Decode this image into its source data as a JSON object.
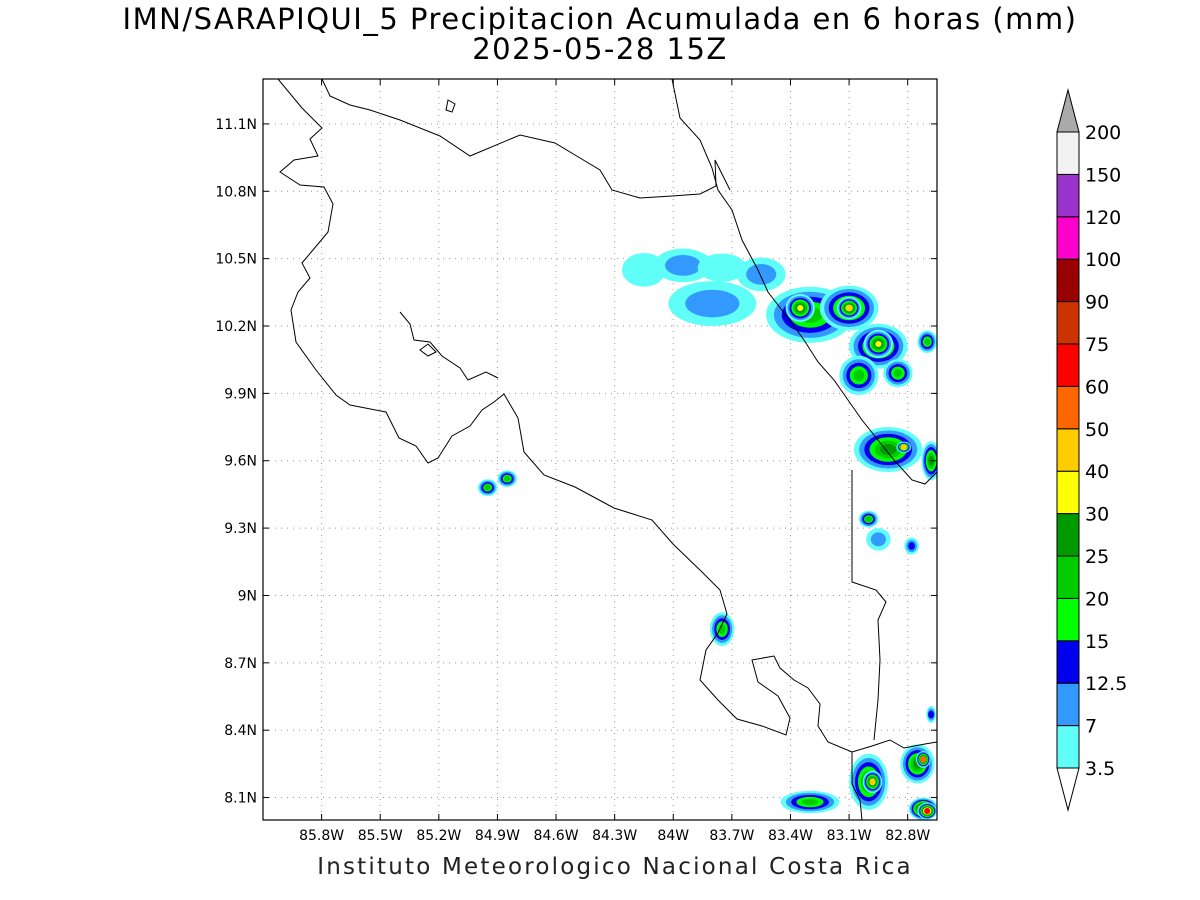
{
  "title": {
    "line1": "IMN/SARAPIQUI_5 Precipitacion Acumulada en 6 horas (mm)",
    "line2": "2025-05-28 15Z"
  },
  "footer": "Instituto Meteorologico Nacional Costa Rica",
  "map": {
    "lon_range": [
      -86.1,
      -82.65
    ],
    "lat_range": [
      8.0,
      11.3
    ],
    "lon_ticks": [
      {
        "value": -85.8,
        "label": "85.8W"
      },
      {
        "value": -85.5,
        "label": "85.5W"
      },
      {
        "value": -85.2,
        "label": "85.2W"
      },
      {
        "value": -84.9,
        "label": "84.9W"
      },
      {
        "value": -84.6,
        "label": "84.6W"
      },
      {
        "value": -84.3,
        "label": "84.3W"
      },
      {
        "value": -84.0,
        "label": "84W"
      },
      {
        "value": -83.7,
        "label": "83.7W"
      },
      {
        "value": -83.4,
        "label": "83.4W"
      },
      {
        "value": -83.1,
        "label": "83.1W"
      },
      {
        "value": -82.8,
        "label": "82.8W"
      }
    ],
    "lat_ticks": [
      {
        "value": 8.1,
        "label": "8.1N"
      },
      {
        "value": 8.4,
        "label": "8.4N"
      },
      {
        "value": 8.7,
        "label": "8.7N"
      },
      {
        "value": 9.0,
        "label": "9N"
      },
      {
        "value": 9.3,
        "label": "9.3N"
      },
      {
        "value": 9.6,
        "label": "9.6N"
      },
      {
        "value": 9.9,
        "label": "9.9N"
      },
      {
        "value": 10.2,
        "label": "10.2N"
      },
      {
        "value": 10.5,
        "label": "10.5N"
      },
      {
        "value": 10.8,
        "label": "10.8N"
      },
      {
        "value": 11.1,
        "label": "11.1N"
      }
    ],
    "grid": true,
    "precip_cells": [
      {
        "lon": -84.15,
        "lat": 10.45,
        "mm": 3.5,
        "rx": 0.09,
        "ry": 0.06
      },
      {
        "lon": -83.95,
        "lat": 10.47,
        "mm": 7,
        "rx": 0.12,
        "ry": 0.06
      },
      {
        "lon": -83.75,
        "lat": 10.46,
        "mm": 3.5,
        "rx": 0.1,
        "ry": 0.05
      },
      {
        "lon": -83.55,
        "lat": 10.43,
        "mm": 7,
        "rx": 0.1,
        "ry": 0.06
      },
      {
        "lon": -83.8,
        "lat": 10.3,
        "mm": 7,
        "rx": 0.18,
        "ry": 0.08
      },
      {
        "lon": -83.3,
        "lat": 10.25,
        "mm": 20,
        "rx": 0.18,
        "ry": 0.1
      },
      {
        "lon": -83.35,
        "lat": 10.28,
        "mm": 30,
        "rx": 0.06,
        "ry": 0.05
      },
      {
        "lon": -83.1,
        "lat": 10.28,
        "mm": 25,
        "rx": 0.12,
        "ry": 0.08
      },
      {
        "lon": -83.1,
        "lat": 10.28,
        "mm": 40,
        "rx": 0.05,
        "ry": 0.04
      },
      {
        "lon": -82.95,
        "lat": 10.11,
        "mm": 25,
        "rx": 0.12,
        "ry": 0.08
      },
      {
        "lon": -82.95,
        "lat": 10.12,
        "mm": 30,
        "rx": 0.06,
        "ry": 0.05
      },
      {
        "lon": -83.05,
        "lat": 9.98,
        "mm": 20,
        "rx": 0.08,
        "ry": 0.07
      },
      {
        "lon": -82.85,
        "lat": 9.99,
        "mm": 20,
        "rx": 0.06,
        "ry": 0.05
      },
      {
        "lon": -82.7,
        "lat": 10.13,
        "mm": 20,
        "rx": 0.04,
        "ry": 0.04
      },
      {
        "lon": -82.9,
        "lat": 9.65,
        "mm": 25,
        "rx": 0.14,
        "ry": 0.08
      },
      {
        "lon": -82.82,
        "lat": 9.66,
        "mm": 40,
        "rx": 0.03,
        "ry": 0.02
      },
      {
        "lon": -82.68,
        "lat": 9.6,
        "mm": 25,
        "rx": 0.04,
        "ry": 0.07
      },
      {
        "lon": -83.0,
        "lat": 9.34,
        "mm": 20,
        "rx": 0.04,
        "ry": 0.03
      },
      {
        "lon": -82.78,
        "lat": 9.22,
        "mm": 12.5,
        "rx": 0.03,
        "ry": 0.03
      },
      {
        "lon": -82.95,
        "lat": 9.25,
        "mm": 7,
        "rx": 0.05,
        "ry": 0.04
      },
      {
        "lon": -84.95,
        "lat": 9.48,
        "mm": 20,
        "rx": 0.04,
        "ry": 0.03
      },
      {
        "lon": -84.85,
        "lat": 9.52,
        "mm": 20,
        "rx": 0.04,
        "ry": 0.03
      },
      {
        "lon": -83.75,
        "lat": 8.85,
        "mm": 20,
        "rx": 0.05,
        "ry": 0.06
      },
      {
        "lon": -83.3,
        "lat": 8.08,
        "mm": 20,
        "rx": 0.12,
        "ry": 0.04
      },
      {
        "lon": -83.0,
        "lat": 8.17,
        "mm": 25,
        "rx": 0.08,
        "ry": 0.1
      },
      {
        "lon": -82.98,
        "lat": 8.17,
        "mm": 40,
        "rx": 0.04,
        "ry": 0.04
      },
      {
        "lon": -82.75,
        "lat": 8.25,
        "mm": 25,
        "rx": 0.07,
        "ry": 0.07
      },
      {
        "lon": -82.72,
        "lat": 8.27,
        "mm": 50,
        "rx": 0.03,
        "ry": 0.03
      },
      {
        "lon": -82.72,
        "lat": 8.05,
        "mm": 50,
        "rx": 0.06,
        "ry": 0.04
      },
      {
        "lon": -82.7,
        "lat": 8.04,
        "mm": 60,
        "rx": 0.04,
        "ry": 0.03
      },
      {
        "lon": -82.68,
        "lat": 8.47,
        "mm": 12.5,
        "rx": 0.02,
        "ry": 0.03
      }
    ]
  },
  "colorbar": {
    "levels": [
      "3.5",
      "7",
      "12.5",
      "15",
      "20",
      "25",
      "30",
      "40",
      "50",
      "60",
      "75",
      "90",
      "100",
      "120",
      "150",
      "200"
    ],
    "colors": [
      "#ffffff",
      "#5ffff7",
      "#3399ff",
      "#0000ee",
      "#00ff00",
      "#00cc00",
      "#009900",
      "#ffff00",
      "#ffcc00",
      "#ff6600",
      "#ff0000",
      "#cc3300",
      "#990000",
      "#ff00cc",
      "#9933cc",
      "#f2f2f2",
      "#aaaaaa"
    ]
  }
}
